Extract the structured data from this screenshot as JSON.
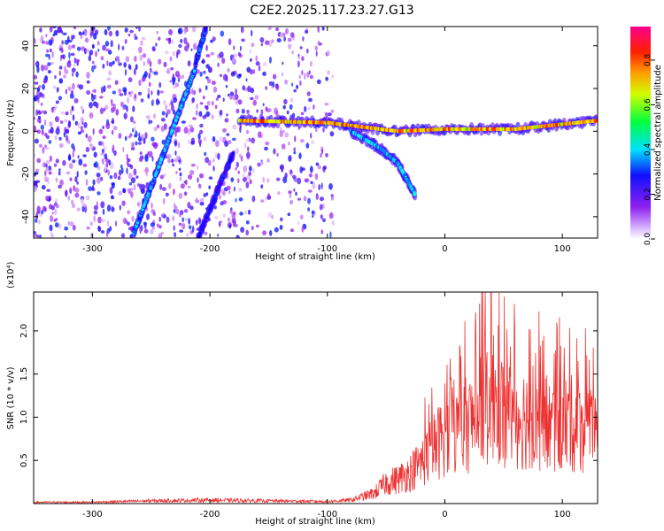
{
  "title": "C2E2.2025.117.23.27.G13",
  "chart_data": [
    {
      "type": "heatmap",
      "xlabel": "Height of straight line (km)",
      "ylabel": "Frequency (Hz)",
      "xlim": [
        -350,
        130
      ],
      "ylim": [
        -50,
        49
      ],
      "xticks": [
        -300,
        -200,
        -100,
        0,
        100
      ],
      "yticks": [
        -40,
        -20,
        0,
        20,
        40
      ],
      "colorbar": {
        "label": "Normalized spectral amplitude",
        "range": [
          0.0,
          0.95
        ],
        "ticks": [
          "0.0",
          "0.2",
          "0.4",
          "0.6",
          "0.8"
        ],
        "colors": [
          "#ffffff",
          "#a020f0",
          "#0000ff",
          "#00ffff",
          "#00ff00",
          "#ffff00",
          "#ff8000",
          "#ff0000",
          "#ff00a0"
        ]
      },
      "features": [
        {
          "name": "rising streak",
          "points": [
            [
              -265,
              -48
            ],
            [
              -212,
              30
            ]
          ],
          "amplitude": 0.35
        },
        {
          "name": "upper streak",
          "points": [
            [
              -212,
              32
            ],
            [
              -203,
              49
            ]
          ],
          "amplitude": 0.3
        },
        {
          "name": "lower streak",
          "points": [
            [
              -210,
              -50
            ],
            [
              -180,
              -10
            ]
          ],
          "amplitude": 0.25
        },
        {
          "name": "steady tone",
          "points": [
            [
              -175,
              5
            ],
            [
              -100,
              4
            ],
            [
              -40,
              0
            ],
            [
              0,
              1
            ],
            [
              60,
              1
            ],
            [
              130,
              5
            ]
          ],
          "amplitude": 0.75
        },
        {
          "name": "descending branch",
          "points": [
            [
              -80,
              0
            ],
            [
              -55,
              -8
            ],
            [
              -40,
              -15
            ],
            [
              -25,
              -30
            ]
          ],
          "amplitude": 0.35
        }
      ],
      "noise_region": [
        -350,
        -95
      ]
    },
    {
      "type": "line",
      "xlabel": "Height of straight line (km)",
      "ylabel": "SNR (10 * v/v)",
      "y_multiplier": "(x10⁴)",
      "xlim": [
        -350,
        130
      ],
      "ylim": [
        0,
        2.45
      ],
      "xticks": [
        -300,
        -200,
        -100,
        0,
        100
      ],
      "yticks": [
        "0.5",
        "1.0",
        "1.5",
        "2.0"
      ],
      "color": "#ee3030",
      "x": [
        -350,
        -300,
        -250,
        -200,
        -150,
        -100,
        -80,
        -60,
        -50,
        -40,
        -30,
        -20,
        -10,
        0,
        10,
        20,
        30,
        40,
        50,
        60,
        70,
        80,
        90,
        100,
        110,
        120,
        130
      ],
      "y": [
        0.02,
        0.02,
        0.04,
        0.05,
        0.04,
        0.03,
        0.05,
        0.15,
        0.3,
        0.35,
        0.45,
        0.6,
        0.8,
        1.0,
        1.05,
        1.15,
        1.3,
        1.4,
        1.35,
        1.25,
        1.25,
        1.2,
        1.1,
        1.15,
        1.15,
        1.1,
        0.9
      ],
      "y_peak": 2.45
    }
  ]
}
